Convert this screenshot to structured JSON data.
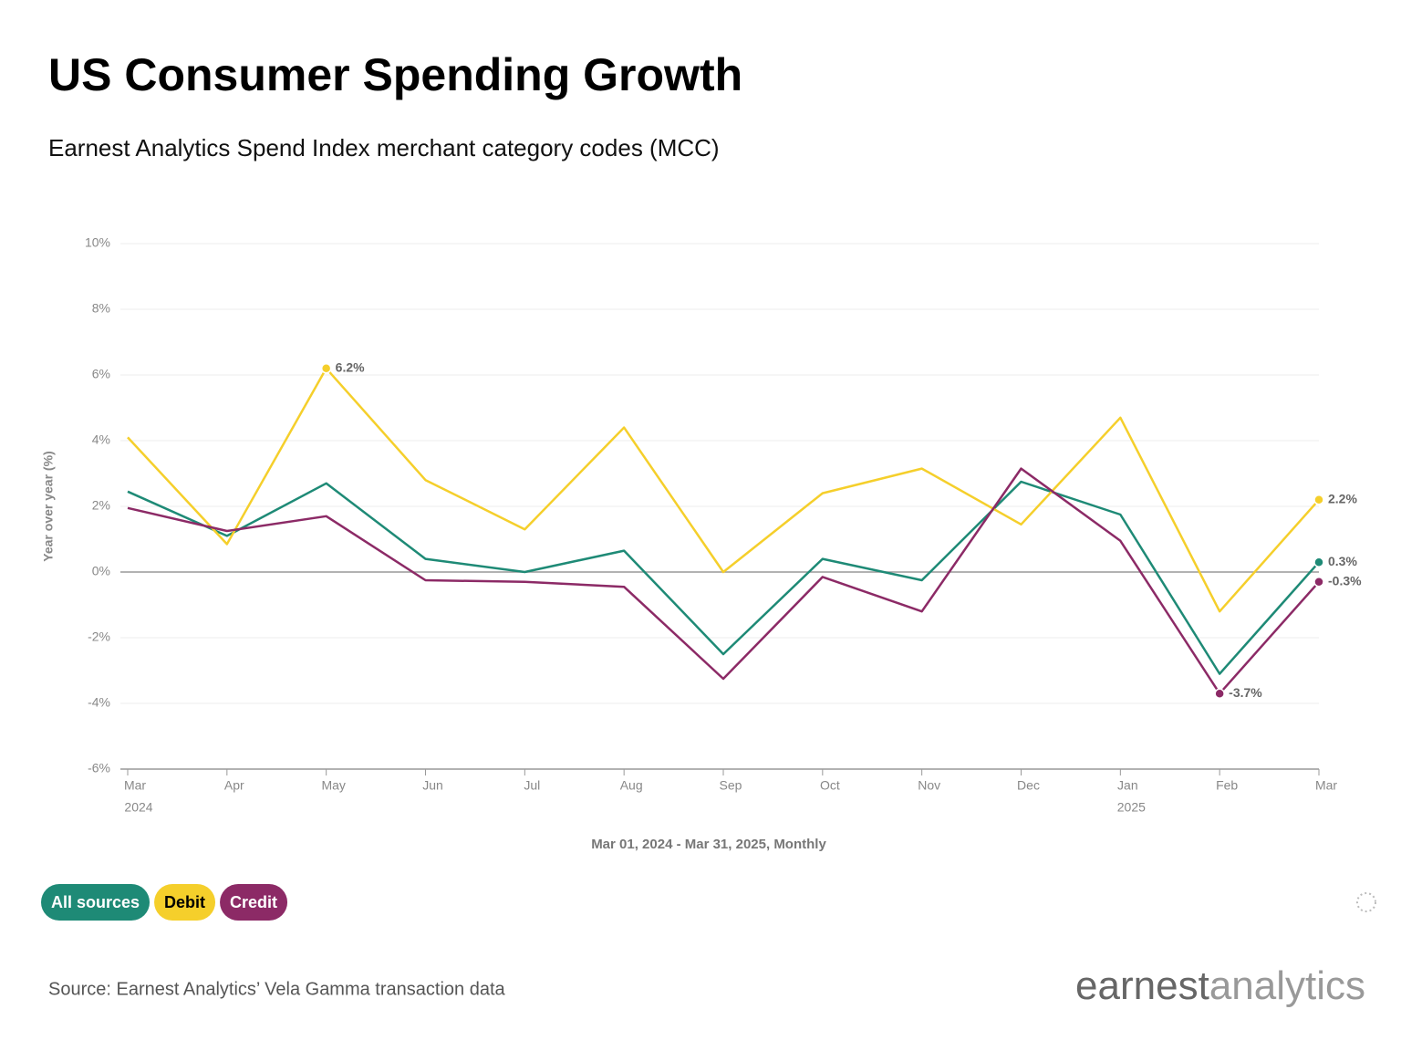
{
  "chart_data": {
    "type": "line",
    "title": "US Consumer Spending Growth",
    "subtitle": "Earnest Analytics Spend Index merchant category codes (MCC)",
    "y_label": "Year over year (%)",
    "x_caption": "Mar 01, 2024 - Mar 31, 2025, Monthly",
    "categories": [
      "Mar",
      "Apr",
      "May",
      "Jun",
      "Jul",
      "Aug",
      "Sep",
      "Oct",
      "Nov",
      "Dec",
      "Jan",
      "Feb",
      "Mar"
    ],
    "category_years": [
      "2024",
      null,
      null,
      null,
      null,
      null,
      null,
      null,
      null,
      null,
      "2025",
      null,
      null
    ],
    "series": [
      {
        "name": "All sources",
        "color": "#1e8a76",
        "text_color": "#ffffff",
        "values": [
          2.45,
          1.1,
          2.7,
          0.4,
          0.0,
          0.65,
          -2.5,
          0.4,
          -0.25,
          2.75,
          1.75,
          -3.1,
          0.3
        ],
        "value_labels": [
          null,
          null,
          null,
          null,
          null,
          null,
          null,
          null,
          null,
          null,
          null,
          null,
          "0.3%"
        ]
      },
      {
        "name": "Debit",
        "color": "#f5cf2b",
        "text_color": "#000000",
        "values": [
          4.1,
          0.85,
          6.2,
          2.8,
          1.3,
          4.4,
          0.0,
          2.4,
          3.15,
          1.45,
          4.7,
          -1.2,
          2.2
        ],
        "value_labels": [
          null,
          null,
          "6.2%",
          null,
          null,
          null,
          null,
          null,
          null,
          null,
          null,
          null,
          "2.2%"
        ]
      },
      {
        "name": "Credit",
        "color": "#8c2a66",
        "text_color": "#ffffff",
        "values": [
          1.95,
          1.25,
          1.7,
          -0.25,
          -0.3,
          -0.45,
          -3.25,
          -0.15,
          -1.2,
          3.15,
          0.95,
          -3.7,
          -0.3
        ],
        "value_labels": [
          null,
          null,
          null,
          null,
          null,
          null,
          null,
          null,
          null,
          null,
          null,
          "-3.7%",
          "-0.3%"
        ]
      }
    ],
    "ylim": [
      -6,
      10
    ],
    "yticks": [
      {
        "value": -6,
        "label": "-6%"
      },
      {
        "value": -4,
        "label": "-4%"
      },
      {
        "value": -2,
        "label": "-2%"
      },
      {
        "value": 0,
        "label": "0%"
      },
      {
        "value": 2,
        "label": "2%"
      },
      {
        "value": 4,
        "label": "4%"
      },
      {
        "value": 6,
        "label": "6%"
      },
      {
        "value": 8,
        "label": "8%"
      },
      {
        "value": 10,
        "label": "10%"
      }
    ],
    "grid": true
  },
  "source": "Source: Earnest Analytics’ Vela Gamma transaction data",
  "logo": [
    "earnest",
    "analytics"
  ]
}
